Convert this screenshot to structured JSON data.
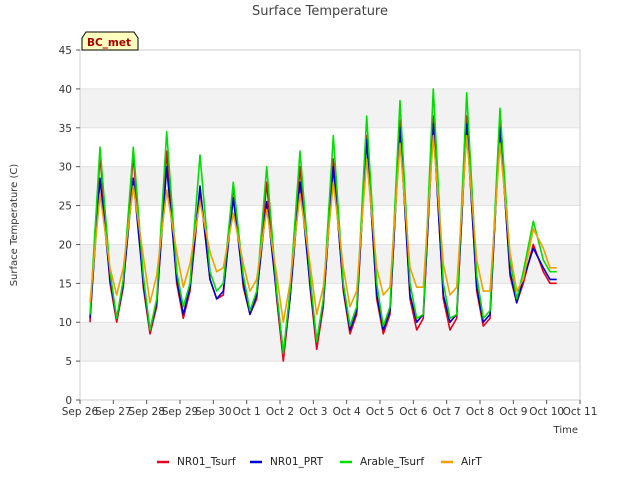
{
  "chart_data": {
    "type": "line",
    "title": "Surface Temperature",
    "xlabel": "Time",
    "ylabel": "Surface Temperature (C)",
    "site_label": "BC_met",
    "ylim": [
      0,
      45
    ],
    "yticks": [
      0,
      5,
      10,
      15,
      20,
      25,
      30,
      35,
      40,
      45
    ],
    "xlim": [
      0,
      15
    ],
    "xticks": [
      {
        "x": 0,
        "label": "Sep 26"
      },
      {
        "x": 1,
        "label": "Sep 27"
      },
      {
        "x": 2,
        "label": "Sep 28"
      },
      {
        "x": 3,
        "label": "Sep 29"
      },
      {
        "x": 4,
        "label": "Sep 30"
      },
      {
        "x": 5,
        "label": "Oct 1"
      },
      {
        "x": 6,
        "label": "Oct 2"
      },
      {
        "x": 7,
        "label": "Oct 3"
      },
      {
        "x": 8,
        "label": "Oct 4"
      },
      {
        "x": 9,
        "label": "Oct 5"
      },
      {
        "x": 10,
        "label": "Oct 6"
      },
      {
        "x": 11,
        "label": "Oct 7"
      },
      {
        "x": 12,
        "label": "Oct 8"
      },
      {
        "x": 13,
        "label": "Oct 9"
      },
      {
        "x": 14,
        "label": "Oct 10"
      },
      {
        "x": 15,
        "label": "Oct 11"
      }
    ],
    "grid": "horizontal-bands",
    "legend_position": "bottom",
    "series": [
      {
        "name": "NR01_Tsurf",
        "color": "#e8001c",
        "x": [
          0.3,
          0.6,
          0.9,
          1.1,
          1.3,
          1.6,
          1.9,
          2.1,
          2.3,
          2.6,
          2.9,
          3.1,
          3.3,
          3.6,
          3.9,
          4.1,
          4.3,
          4.6,
          4.9,
          5.1,
          5.3,
          5.6,
          5.9,
          6.1,
          6.3,
          6.6,
          6.9,
          7.1,
          7.3,
          7.6,
          7.9,
          8.1,
          8.3,
          8.6,
          8.9,
          9.1,
          9.3,
          9.6,
          9.9,
          10.1,
          10.3,
          10.6,
          10.9,
          11.1,
          11.3,
          11.6,
          11.9,
          12.1,
          12.3,
          12.6,
          12.9,
          13.1,
          13.3,
          13.6,
          13.9,
          14.1,
          14.3
        ],
        "y": [
          10.0,
          31.5,
          15.0,
          10.0,
          14.5,
          31.5,
          14.5,
          8.5,
          12.0,
          32.0,
          15.0,
          10.5,
          14.0,
          27.0,
          15.5,
          13.0,
          13.5,
          27.5,
          14.5,
          11.0,
          13.0,
          28.0,
          13.0,
          5.0,
          13.0,
          30.0,
          14.5,
          6.5,
          12.0,
          31.0,
          14.0,
          8.5,
          11.0,
          34.0,
          13.0,
          8.5,
          11.0,
          36.0,
          13.0,
          9.0,
          10.5,
          36.5,
          13.0,
          9.0,
          10.5,
          36.5,
          14.0,
          9.5,
          10.5,
          36.0,
          16.0,
          12.5,
          15.0,
          20.0,
          16.5,
          15.0,
          15.0
        ]
      },
      {
        "name": "NR01_PRT",
        "color": "#0000cc",
        "x": [
          0.3,
          0.6,
          0.9,
          1.1,
          1.3,
          1.6,
          1.9,
          2.1,
          2.3,
          2.6,
          2.9,
          3.1,
          3.3,
          3.6,
          3.9,
          4.1,
          4.3,
          4.6,
          4.9,
          5.1,
          5.3,
          5.6,
          5.9,
          6.1,
          6.3,
          6.6,
          6.9,
          7.1,
          7.3,
          7.6,
          7.9,
          8.1,
          8.3,
          8.6,
          8.9,
          9.1,
          9.3,
          9.6,
          9.9,
          10.1,
          10.3,
          10.6,
          10.9,
          11.1,
          11.3,
          11.6,
          11.9,
          12.1,
          12.3,
          12.6,
          12.9,
          13.1,
          13.3,
          13.6,
          13.9,
          14.1,
          14.3
        ],
        "y": [
          10.5,
          28.5,
          15.5,
          10.5,
          15.0,
          28.5,
          15.0,
          9.0,
          12.5,
          30.0,
          15.5,
          11.0,
          14.5,
          27.5,
          15.5,
          13.0,
          14.0,
          26.0,
          15.0,
          11.0,
          13.5,
          25.5,
          13.5,
          6.0,
          13.0,
          28.0,
          15.0,
          7.5,
          12.5,
          30.0,
          14.5,
          9.0,
          11.5,
          33.5,
          13.5,
          9.0,
          11.5,
          35.0,
          13.5,
          10.0,
          11.0,
          35.5,
          13.5,
          10.0,
          11.0,
          35.5,
          14.5,
          10.0,
          11.0,
          35.0,
          16.5,
          12.5,
          15.5,
          19.5,
          17.0,
          15.5,
          15.5
        ]
      },
      {
        "name": "Arable_Tsurf",
        "color": "#00e000",
        "x": [
          0.3,
          0.6,
          0.9,
          1.1,
          1.3,
          1.6,
          1.9,
          2.1,
          2.3,
          2.6,
          2.9,
          3.1,
          3.3,
          3.6,
          3.9,
          4.1,
          4.3,
          4.6,
          4.9,
          5.1,
          5.3,
          5.6,
          5.9,
          6.1,
          6.3,
          6.6,
          6.9,
          7.1,
          7.3,
          7.6,
          7.9,
          8.1,
          8.3,
          8.6,
          8.9,
          9.1,
          9.3,
          9.6,
          9.9,
          10.1,
          10.3,
          10.6,
          10.9,
          11.1,
          11.3,
          11.6,
          11.9,
          12.1,
          12.3,
          12.6,
          12.9,
          13.1,
          13.3,
          13.6,
          13.9,
          14.1,
          14.3
        ],
        "y": [
          11.0,
          32.5,
          16.5,
          10.5,
          15.5,
          32.5,
          16.0,
          9.0,
          13.0,
          34.5,
          16.5,
          12.0,
          15.0,
          31.5,
          16.5,
          14.0,
          15.0,
          28.0,
          16.0,
          11.5,
          14.0,
          30.0,
          14.0,
          6.0,
          14.0,
          32.0,
          16.0,
          7.5,
          13.0,
          34.0,
          15.0,
          9.5,
          12.0,
          36.5,
          15.0,
          9.5,
          12.0,
          38.5,
          15.0,
          10.5,
          11.0,
          40.0,
          15.0,
          10.5,
          11.0,
          39.5,
          16.0,
          10.5,
          11.5,
          37.5,
          18.0,
          13.0,
          16.5,
          23.0,
          18.0,
          16.5,
          16.5
        ]
      },
      {
        "name": "AirT",
        "color": "#f0a000",
        "x": [
          0.3,
          0.6,
          0.9,
          1.1,
          1.3,
          1.6,
          1.9,
          2.1,
          2.3,
          2.6,
          2.9,
          3.1,
          3.3,
          3.6,
          3.9,
          4.1,
          4.3,
          4.6,
          4.9,
          5.1,
          5.3,
          5.6,
          5.9,
          6.1,
          6.3,
          6.6,
          6.9,
          7.1,
          7.3,
          7.6,
          7.9,
          8.1,
          8.3,
          8.6,
          8.9,
          9.1,
          9.3,
          9.6,
          9.9,
          10.1,
          10.3,
          10.6,
          10.9,
          11.1,
          11.3,
          11.6,
          11.9,
          12.1,
          12.3,
          12.6,
          12.9,
          13.1,
          13.3,
          13.6,
          13.9,
          14.1,
          14.3
        ],
        "y": [
          12.5,
          26.5,
          17.0,
          13.5,
          17.0,
          27.5,
          18.5,
          12.5,
          16.0,
          27.0,
          19.0,
          14.5,
          17.5,
          25.5,
          19.0,
          16.5,
          17.0,
          24.0,
          17.5,
          14.0,
          15.5,
          24.5,
          16.0,
          10.0,
          15.0,
          26.5,
          17.5,
          11.0,
          14.5,
          28.0,
          17.0,
          12.0,
          14.0,
          31.0,
          17.0,
          13.5,
          14.5,
          33.0,
          17.0,
          14.5,
          14.5,
          34.0,
          17.5,
          13.5,
          14.5,
          34.0,
          18.0,
          14.0,
          14.0,
          33.0,
          19.0,
          14.0,
          15.5,
          22.0,
          19.5,
          17.0,
          17.0
        ]
      }
    ]
  }
}
